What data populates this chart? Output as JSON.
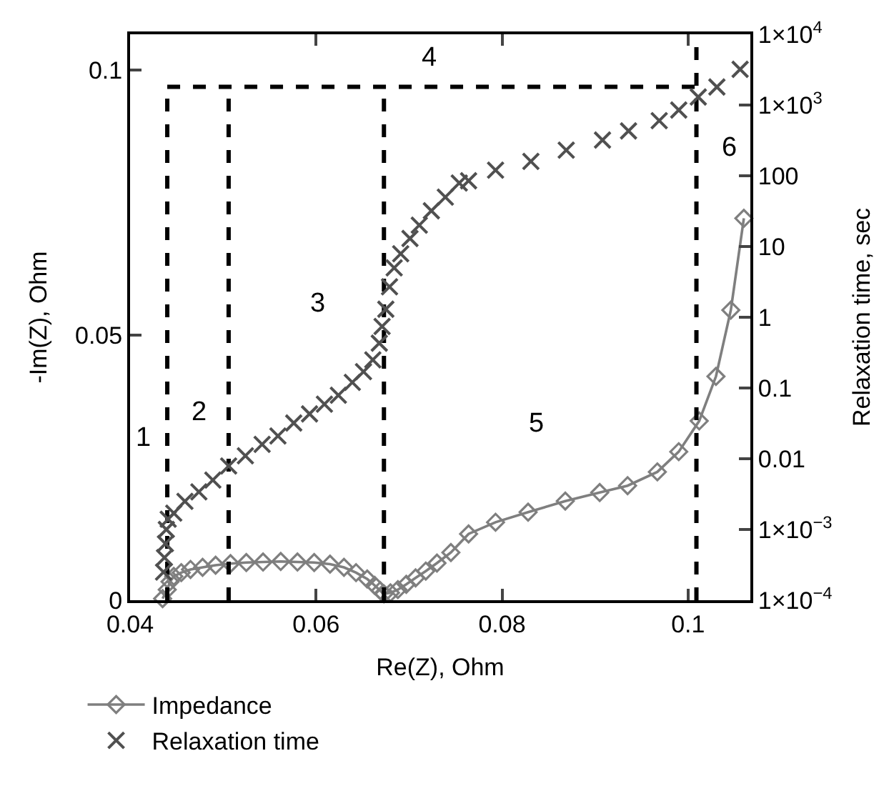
{
  "chart_data": {
    "type": "line",
    "xlabel": "Re(Z), Ohm",
    "ylabel": "-Im(Z), Ohm",
    "y2label": "Relaxation time, sec",
    "xlim": [
      0.04,
      0.1067
    ],
    "xticks": [
      0.04,
      0.06,
      0.08,
      0.1
    ],
    "ylim": [
      0,
      0.1067
    ],
    "yticks": [
      0,
      0.05,
      0.1
    ],
    "y2lim": [
      0.0001,
      10000
    ],
    "y2ticks": [
      {
        "value": 0.0001,
        "label": "1×10$^{−4}$"
      },
      {
        "value": 0.001,
        "label": "1×10$^{−3}$"
      },
      0.01,
      0.1,
      1,
      10,
      100,
      {
        "value": 1000,
        "label": "1×10$^{3}$"
      },
      {
        "value": 10000,
        "label": "1×10$^{4}$"
      }
    ],
    "log": "y2",
    "legend": "bottom",
    "series": [
      {
        "name": "Impedance",
        "marker": "diamond",
        "line_style": "solid",
        "color": "#7f7f7f",
        "x": [
          0.0435,
          0.044,
          0.0443,
          0.0447,
          0.0455,
          0.0465,
          0.0478,
          0.0492,
          0.0508,
          0.0525,
          0.0543,
          0.0562,
          0.058,
          0.0598,
          0.0615,
          0.063,
          0.0643,
          0.0655,
          0.0663,
          0.0669,
          0.0673,
          0.068,
          0.0688,
          0.0697,
          0.0707,
          0.0718,
          0.073,
          0.0745,
          0.0764,
          0.0793,
          0.0828,
          0.0868,
          0.0905,
          0.0935,
          0.0967,
          0.099,
          0.1012,
          0.103,
          0.1046,
          0.106
        ],
        "values": [
          0.0003,
          0.002,
          0.0035,
          0.0045,
          0.0052,
          0.0058,
          0.0062,
          0.0066,
          0.0069,
          0.0071,
          0.0072,
          0.0073,
          0.0072,
          0.0071,
          0.0068,
          0.0062,
          0.0052,
          0.004,
          0.0028,
          0.0018,
          0.0012,
          0.0014,
          0.002,
          0.003,
          0.0042,
          0.0055,
          0.007,
          0.009,
          0.0125,
          0.0147,
          0.0166,
          0.0187,
          0.0203,
          0.0216,
          0.0242,
          0.028,
          0.0338,
          0.0422,
          0.0547,
          0.072
        ]
      },
      {
        "name": "Relaxation time",
        "type": "scatter",
        "axis": "y2",
        "marker": "cross",
        "color": "#505050",
        "x": [
          0.0436,
          0.0437,
          0.0438,
          0.0439,
          0.0441,
          0.0447,
          0.0459,
          0.0474,
          0.0489,
          0.0506,
          0.0524,
          0.0542,
          0.0559,
          0.0576,
          0.0593,
          0.0609,
          0.0624,
          0.0639,
          0.0651,
          0.0661,
          0.0668,
          0.0671,
          0.0675,
          0.0679,
          0.0684,
          0.0691,
          0.0701,
          0.0711,
          0.0724,
          0.0739,
          0.0754,
          0.0764,
          0.0793,
          0.0831,
          0.0869,
          0.0908,
          0.0936,
          0.0969,
          0.099,
          0.1011,
          0.1031,
          0.1056
        ],
        "values": [
          0.00025,
          0.0004,
          0.00063,
          0.001,
          0.0014,
          0.0017,
          0.0025,
          0.0034,
          0.005,
          0.0079,
          0.011,
          0.016,
          0.021,
          0.032,
          0.043,
          0.059,
          0.079,
          0.12,
          0.17,
          0.25,
          0.43,
          0.74,
          1.3,
          2.7,
          5,
          7.9,
          13,
          20,
          32,
          50,
          79,
          85,
          120,
          160,
          230,
          320,
          430,
          600,
          850,
          1300,
          1800,
          3200
        ]
      },
      {
        "marker": "none",
        "line_style": "dashed",
        "color": "#000000",
        "x": [
          0.044,
          0.044
        ],
        "values": [
          0,
          0.0968
        ]
      },
      {
        "marker": "none",
        "line_style": "dashed",
        "color": "#000000",
        "x": [
          0.044,
          0.1009
        ],
        "values": [
          0.0968,
          0.0968
        ]
      },
      {
        "marker": "none",
        "line_style": "dashed",
        "color": "#000000",
        "x": [
          0.0506,
          0.0506
        ],
        "values": [
          0,
          0.0968
        ]
      },
      {
        "marker": "none",
        "line_style": "dashed",
        "color": "#000000",
        "x": [
          0.0673,
          0.0673
        ],
        "values": [
          0,
          0.0968
        ]
      },
      {
        "marker": "none",
        "line_style": "dashed",
        "color": "#000000",
        "x": [
          0.1009,
          0.1009
        ],
        "values": [
          0,
          0.1067
        ]
      }
    ],
    "annotations": [
      "1",
      "2",
      "3",
      "4",
      "5",
      "6"
    ]
  }
}
